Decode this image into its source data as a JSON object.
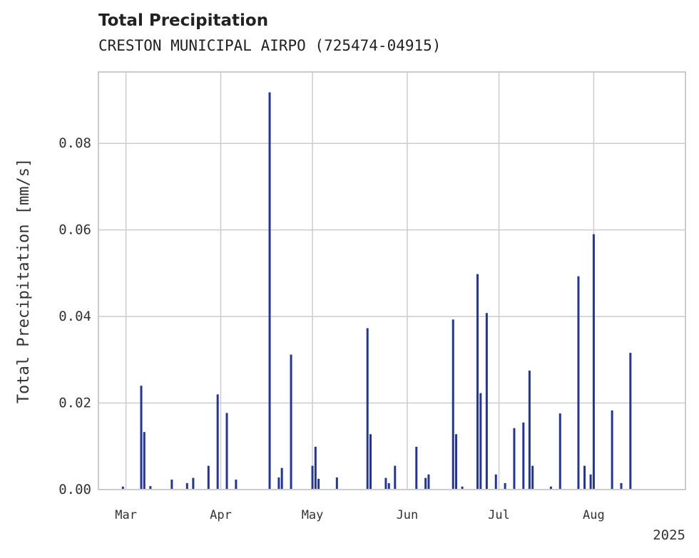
{
  "chart_data": {
    "type": "bar",
    "title": "Total Precipitation",
    "subtitle": "CRESTON MUNICIPAL AIRPO (725474-04915)",
    "ylabel": "Total Precipitation [mm/s]",
    "xlabel": "",
    "ylim": [
      0,
      0.0965
    ],
    "xlim": [
      "2025-02-20",
      "2025-08-31"
    ],
    "yticks": [
      0.0,
      0.02,
      0.04,
      0.06,
      0.08
    ],
    "ytick_labels": [
      "0.00",
      "0.02",
      "0.04",
      "0.06",
      "0.08"
    ],
    "xticks": [
      {
        "date": "2025-03-01",
        "label": "Mar"
      },
      {
        "date": "2025-04-01",
        "label": "Apr"
      },
      {
        "date": "2025-05-01",
        "label": "May"
      },
      {
        "date": "2025-06-01",
        "label": "Jun"
      },
      {
        "date": "2025-07-01",
        "label": "Jul"
      },
      {
        "date": "2025-08-01",
        "label": "Aug"
      }
    ],
    "x_offset_label": "2025",
    "grid": true,
    "color": "#23349a",
    "x": [
      "2025-02-28",
      "2025-03-06",
      "2025-03-07",
      "2025-03-09",
      "2025-03-16",
      "2025-03-21",
      "2025-03-23",
      "2025-03-28",
      "2025-03-31",
      "2025-04-03",
      "2025-04-06",
      "2025-04-17",
      "2025-04-20",
      "2025-04-21",
      "2025-04-24",
      "2025-05-01",
      "2025-05-02",
      "2025-05-03",
      "2025-05-09",
      "2025-05-19",
      "2025-05-20",
      "2025-05-25",
      "2025-05-26",
      "2025-05-28",
      "2025-06-04",
      "2025-06-07",
      "2025-06-08",
      "2025-06-16",
      "2025-06-17",
      "2025-06-19",
      "2025-06-24",
      "2025-06-25",
      "2025-06-27",
      "2025-06-30",
      "2025-07-03",
      "2025-07-06",
      "2025-07-09",
      "2025-07-11",
      "2025-07-12",
      "2025-07-18",
      "2025-07-21",
      "2025-07-27",
      "2025-07-29",
      "2025-07-31",
      "2025-08-01",
      "2025-08-07",
      "2025-08-10",
      "2025-08-13"
    ],
    "values": [
      0.0007,
      0.024,
      0.0133,
      0.0008,
      0.0023,
      0.0015,
      0.0027,
      0.0055,
      0.022,
      0.0177,
      0.0023,
      0.0918,
      0.0028,
      0.005,
      0.0312,
      0.0055,
      0.0099,
      0.0025,
      0.0028,
      0.0373,
      0.0128,
      0.0027,
      0.0015,
      0.0055,
      0.0099,
      0.0027,
      0.0035,
      0.0393,
      0.0128,
      0.0007,
      0.0498,
      0.0223,
      0.0408,
      0.0035,
      0.0015,
      0.0142,
      0.0155,
      0.0275,
      0.0055,
      0.0007,
      0.0176,
      0.0493,
      0.0055,
      0.0035,
      0.059,
      0.0183,
      0.0015,
      0.0316
    ]
  }
}
